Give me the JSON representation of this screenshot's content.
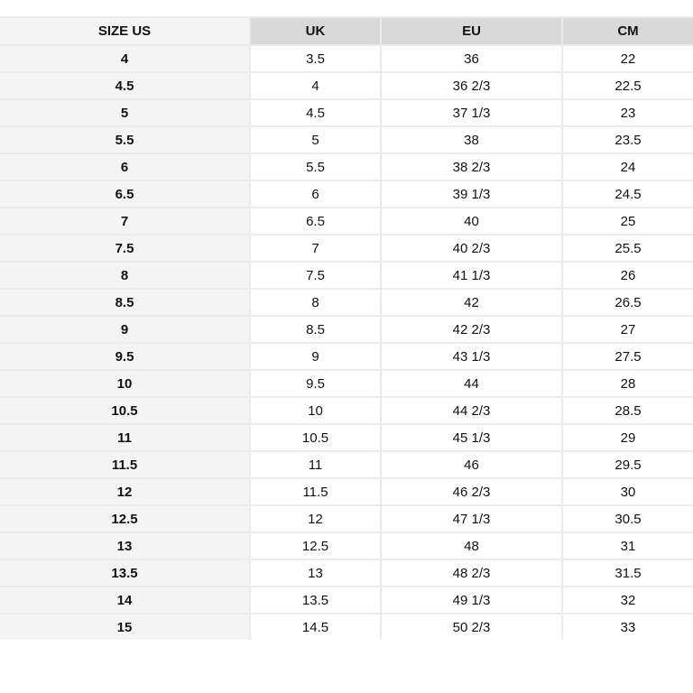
{
  "table": {
    "headers": [
      "SIZE US",
      "UK",
      "EU",
      "CM"
    ],
    "rows": [
      [
        "4",
        "3.5",
        "36",
        "22"
      ],
      [
        "4.5",
        "4",
        "36 2/3",
        "22.5"
      ],
      [
        "5",
        "4.5",
        "37 1/3",
        "23"
      ],
      [
        "5.5",
        "5",
        "38",
        "23.5"
      ],
      [
        "6",
        "5.5",
        "38 2/3",
        "24"
      ],
      [
        "6.5",
        "6",
        "39 1/3",
        "24.5"
      ],
      [
        "7",
        "6.5",
        "40",
        "25"
      ],
      [
        "7.5",
        "7",
        "40 2/3",
        "25.5"
      ],
      [
        "8",
        "7.5",
        "41 1/3",
        "26"
      ],
      [
        "8.5",
        "8",
        "42",
        "26.5"
      ],
      [
        "9",
        "8.5",
        "42 2/3",
        "27"
      ],
      [
        "9.5",
        "9",
        "43 1/3",
        "27.5"
      ],
      [
        "10",
        "9.5",
        "44",
        "28"
      ],
      [
        "10.5",
        "10",
        "44 2/3",
        "28.5"
      ],
      [
        "11",
        "10.5",
        "45 1/3",
        "29"
      ],
      [
        "11.5",
        "11",
        "46",
        "29.5"
      ],
      [
        "12",
        "11.5",
        "46 2/3",
        "30"
      ],
      [
        "12.5",
        "12",
        "47 1/3",
        "30.5"
      ],
      [
        "13",
        "12.5",
        "48",
        "31"
      ],
      [
        "13.5",
        "13",
        "48 2/3",
        "31.5"
      ],
      [
        "14",
        "13.5",
        "49 1/3",
        "32"
      ],
      [
        "15",
        "14.5",
        "50 2/3",
        "33"
      ]
    ]
  },
  "colors": {
    "header_bg": "#d9d9d9",
    "first_column_bg": "#f4f4f4",
    "border": "#ebebeb"
  }
}
